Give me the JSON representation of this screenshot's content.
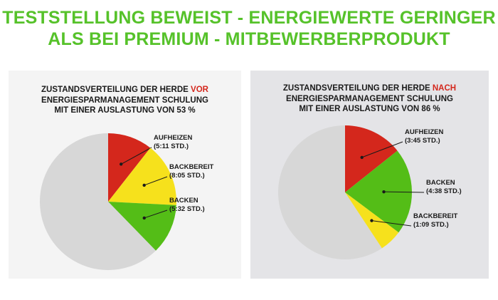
{
  "headline": {
    "line1": "TESTSTELLUNG BEWEIST - ENERGIEWERTE GERINGER",
    "line2": "ALS BEI PREMIUM - MITBEWERBERPRODUKT"
  },
  "colors": {
    "headline": "#56c22a",
    "aufheizen": "#d4271c",
    "backbereit": "#f6e11c",
    "backen": "#54bd17",
    "rest": "#d7d7d7",
    "highlight": "#d4271c"
  },
  "chart_data": [
    {
      "type": "pie",
      "title_line1_pre": "ZUSTANDSVERTEILUNG DER HERDE ",
      "title_line1_hl": "VOR",
      "title_line2": "ENERGIESPARMANAGEMENT SCHULUNG",
      "title_line3": "MIT EINER AUSLASTUNG VON 53 %",
      "slices": [
        {
          "label": "AUFHEIZEN",
          "value_text": "(5:11 STD.)",
          "value": 0.106,
          "color": "#d4271c"
        },
        {
          "label": "BACKBEREIT",
          "value_text": "(8:05 STD.)",
          "value": 0.152,
          "color": "#f6e11c"
        },
        {
          "label": "BACKEN",
          "value_text": "(5:32 STD.)",
          "value": 0.119,
          "color": "#54bd17"
        },
        {
          "label": "",
          "value_text": "",
          "value": 0.623,
          "color": "#d7d7d7"
        }
      ]
    },
    {
      "type": "pie",
      "title_line1_pre": "ZUSTANDSVERTEILUNG DER HERDE ",
      "title_line1_hl": "NACH",
      "title_line2": "ENERGIESPARMANAGEMENT SCHULUNG",
      "title_line3": "MIT EINER AUSLASTUNG VON 86 %",
      "slices": [
        {
          "label": "AUFHEIZEN",
          "value_text": "(3:45 STD.)",
          "value": 0.143,
          "color": "#d4271c"
        },
        {
          "label": "BACKEN",
          "value_text": "(4:38 STD.)",
          "value": 0.209,
          "color": "#54bd17"
        },
        {
          "label": "BACKBEREIT",
          "value_text": "(1:09 STD.)",
          "value": 0.055,
          "color": "#f6e11c"
        },
        {
          "label": "",
          "value_text": "",
          "value": 0.593,
          "color": "#d7d7d7"
        }
      ]
    }
  ]
}
